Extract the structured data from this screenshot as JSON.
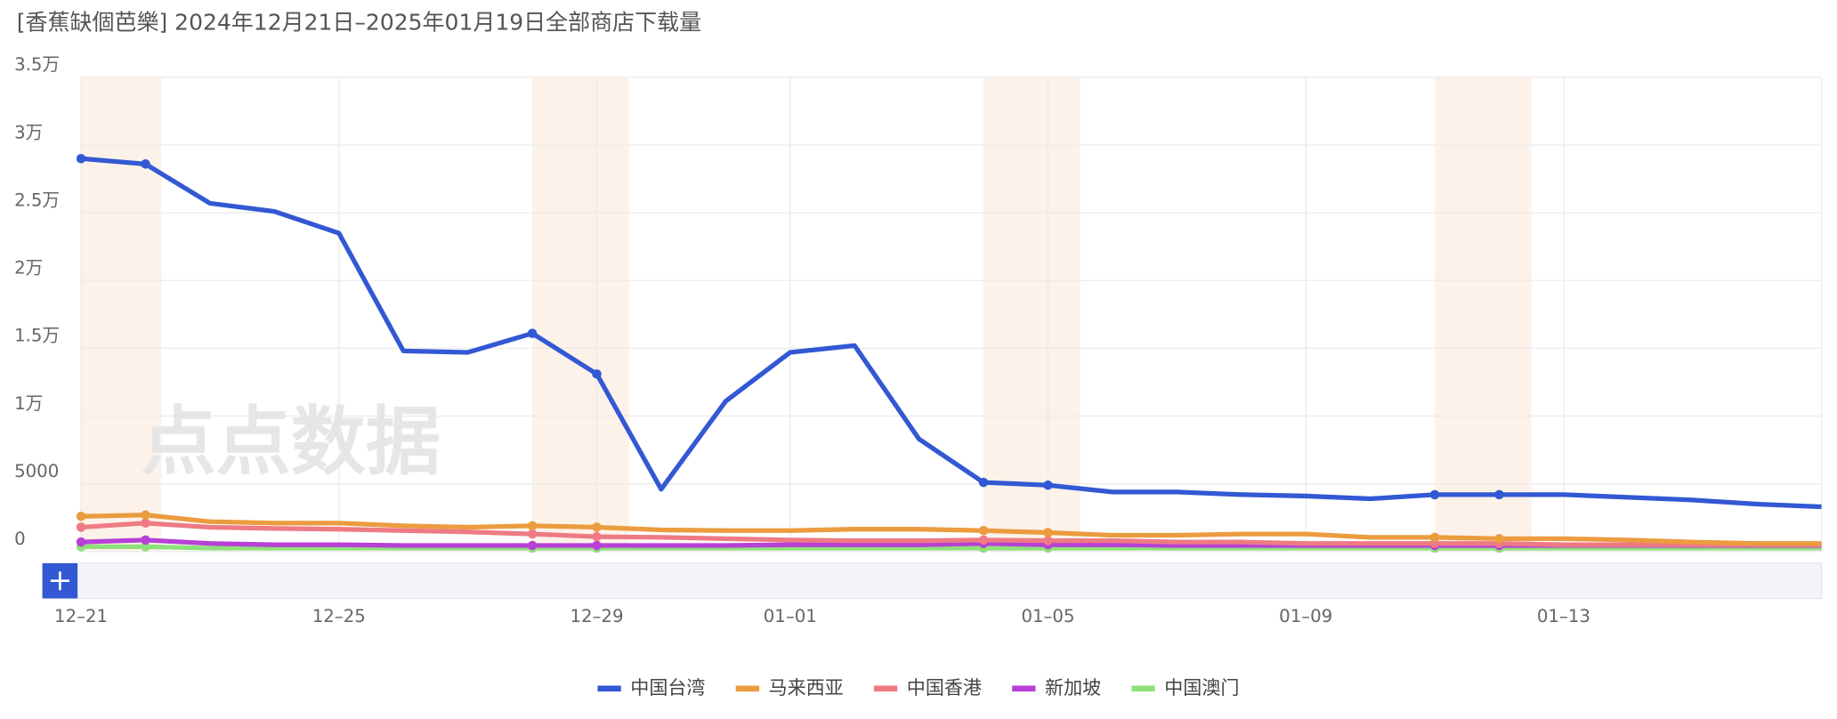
{
  "chart_data": {
    "type": "line",
    "title": "[香蕉缺個芭樂] 2024年12月21日–2025年01月19日全部商店下载量",
    "watermark": "点点数据",
    "categories": [
      "12–21",
      null,
      null,
      null,
      "12–25",
      null,
      null,
      null,
      "12–29",
      null,
      null,
      "01–01",
      null,
      null,
      null,
      "01–05",
      null,
      null,
      null,
      "01–09",
      null,
      null,
      null,
      "01–13",
      null,
      null,
      null,
      null
    ],
    "ylim": [
      0,
      35000
    ],
    "yticks": [
      0,
      5000,
      {
        "value": 10000,
        "label": "1万"
      },
      {
        "value": 15000,
        "label": "1.5万"
      },
      {
        "value": 20000,
        "label": "2万"
      },
      {
        "value": 25000,
        "label": "2.5万"
      },
      {
        "value": 30000,
        "label": "3万"
      },
      {
        "value": 35000,
        "label": "3.5万"
      }
    ],
    "grid": true,
    "legend": "bottom",
    "series": [
      {
        "name": "中国台湾",
        "color": "#3358d4",
        "values": [
          29000,
          28600,
          25700,
          25100,
          23500,
          14800,
          14700,
          16100,
          13100,
          4600,
          11100,
          14700,
          15200,
          8300,
          5100,
          4900,
          4400,
          4400,
          4200,
          4100,
          3900,
          4200,
          4200,
          4200,
          4000,
          3800,
          3500,
          3300
        ]
      },
      {
        "name": "马来西亚",
        "color": "#eb9c3f",
        "values": [
          2600,
          2700,
          2200,
          2100,
          2100,
          1900,
          1800,
          1900,
          1800,
          1600,
          1550,
          1550,
          1650,
          1650,
          1550,
          1400,
          1200,
          1200,
          1300,
          1300,
          1050,
          1050,
          950,
          950,
          850,
          700,
          600,
          600
        ]
      },
      {
        "name": "中国香港",
        "color": "#ee7b84",
        "values": [
          1800,
          2100,
          1800,
          1700,
          1650,
          1550,
          1450,
          1300,
          1100,
          1050,
          950,
          850,
          800,
          800,
          850,
          800,
          800,
          700,
          700,
          600,
          600,
          600,
          600,
          500,
          500,
          500,
          500,
          500
        ]
      },
      {
        "name": "新加坡",
        "color": "#b740d6",
        "values": [
          700,
          850,
          600,
          500,
          500,
          450,
          450,
          450,
          450,
          450,
          450,
          500,
          500,
          500,
          600,
          500,
          500,
          450,
          450,
          450,
          450,
          450,
          450,
          450,
          450,
          450,
          450,
          450
        ]
      },
      {
        "name": "中国澳门",
        "color": "#8fe07a",
        "values": [
          350,
          350,
          250,
          250,
          250,
          250,
          250,
          250,
          250,
          250,
          250,
          250,
          250,
          250,
          250,
          250,
          250,
          250,
          250,
          250,
          250,
          250,
          250,
          250,
          250,
          250,
          250,
          250
        ]
      }
    ]
  }
}
